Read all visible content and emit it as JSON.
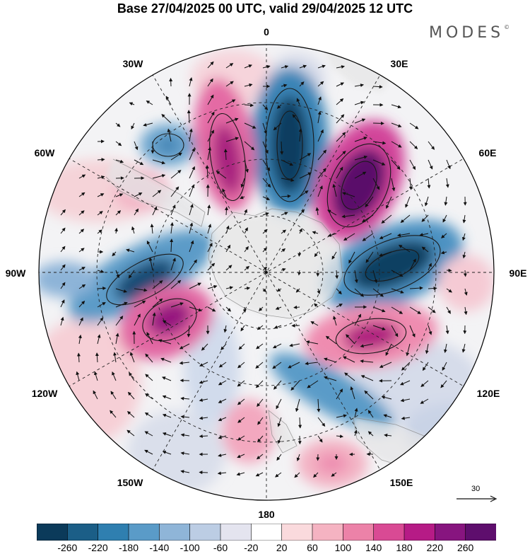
{
  "title": "Base 27/04/2025 00 UTC, valid 29/04/2025 12 UTC",
  "brand": "MODES",
  "brand_mark": "©",
  "longitude_labels": {
    "lon_0": "0",
    "lon_30e": "30E",
    "lon_60e": "60E",
    "lon_90e": "90E",
    "lon_120e": "120E",
    "lon_150e": "150E",
    "lon_180": "180",
    "lon_150w": "150W",
    "lon_120w": "120W",
    "lon_90w": "90W",
    "lon_60w": "60W",
    "lon_30w": "30W"
  },
  "vector_scale_label": "30",
  "colorbar": {
    "ticks": [
      "-260",
      "-220",
      "-180",
      "-140",
      "-100",
      "-60",
      "-20",
      "20",
      "60",
      "100",
      "140",
      "180",
      "220",
      "260"
    ],
    "colors": [
      "#0b3a5a",
      "#1b5e87",
      "#2f7fb0",
      "#5a9bc8",
      "#8fb5d8",
      "#bccde4",
      "#e4e4ef",
      "#ffffff",
      "#fadadd",
      "#f5b3c2",
      "#ec82a8",
      "#d94a94",
      "#b61b86",
      "#87157f",
      "#5e0e6d"
    ]
  },
  "colors": {
    "land": "#e6e6e6",
    "coast": "#8a8a8a",
    "grid": "#222222"
  }
}
